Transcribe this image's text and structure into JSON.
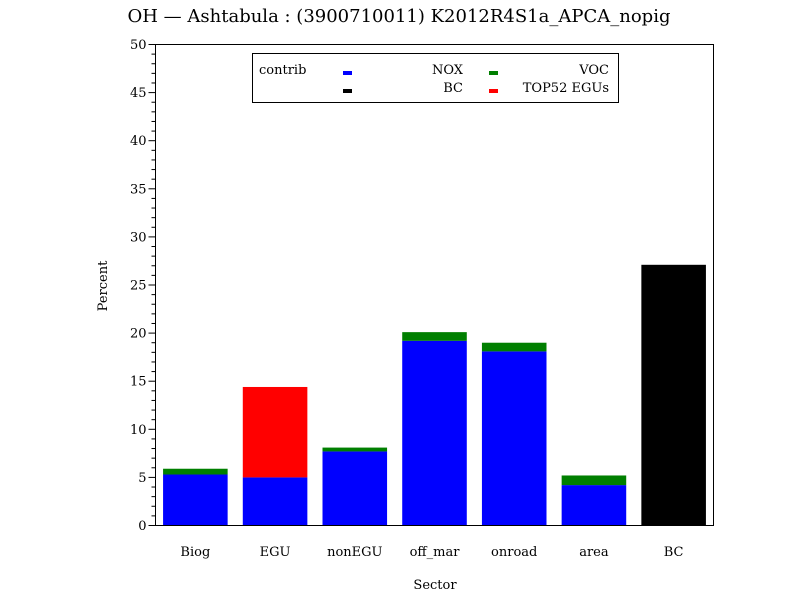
{
  "chart_data": {
    "type": "bar",
    "stacked": true,
    "title": "OH  —  Ashtabula  :  (3900710011)  K2012R4S1a_APCA_nopig",
    "xlabel": "Sector",
    "ylabel": "Percent",
    "ylim": [
      0,
      50
    ],
    "y_ticks": [
      0,
      5,
      10,
      15,
      20,
      25,
      30,
      35,
      40,
      45,
      50
    ],
    "y_tick_labels": [
      "0",
      "5",
      "10",
      "15",
      "20",
      "25",
      "30",
      "35",
      "40",
      "45",
      "50"
    ],
    "grid": false,
    "legend_title": "contrib",
    "legend_position": "top-center",
    "categories": [
      "Biog",
      "EGU",
      "nonEGU",
      "off_mar",
      "onroad",
      "area",
      "BC"
    ],
    "series": [
      {
        "name": "NOX",
        "color": "#0000ff",
        "values": [
          5.3,
          5.0,
          7.7,
          19.2,
          18.1,
          4.2,
          0
        ]
      },
      {
        "name": "VOC",
        "color": "#007f00",
        "values": [
          0.6,
          0,
          0.4,
          0.9,
          0.9,
          1.0,
          0
        ]
      },
      {
        "name": "BC",
        "color": "#000000",
        "values": [
          0,
          0,
          0,
          0,
          0,
          0,
          27.1
        ]
      },
      {
        "name": "TOP52 EGUs",
        "color": "#ff0000",
        "values": [
          0,
          9.4,
          0,
          0,
          0,
          0,
          0
        ]
      }
    ]
  }
}
